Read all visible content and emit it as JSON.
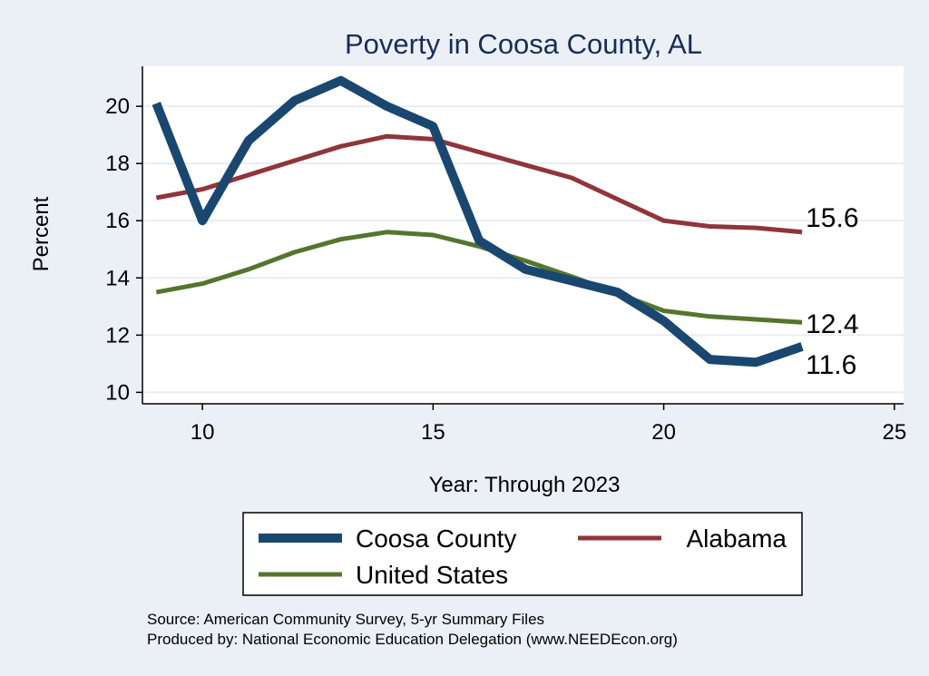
{
  "chart_data": {
    "type": "line",
    "title": "Poverty in Coosa County, AL",
    "xlabel": "Year: Through 2023",
    "ylabel": "Percent",
    "xlim": [
      8.7,
      25.2
    ],
    "ylim": [
      9.6,
      21.4
    ],
    "xticks": [
      10,
      15,
      20,
      25
    ],
    "yticks": [
      10,
      12,
      14,
      16,
      18,
      20
    ],
    "grid": true,
    "x": [
      9,
      10,
      11,
      12,
      13,
      14,
      15,
      16,
      17,
      18,
      19,
      20,
      21,
      22,
      23
    ],
    "series": [
      {
        "name": "Coosa County",
        "color": "#1a476f",
        "values": [
          20.1,
          16.0,
          18.8,
          20.2,
          20.9,
          20.0,
          19.3,
          15.3,
          14.3,
          13.9,
          13.5,
          12.5,
          11.15,
          11.05,
          11.6
        ],
        "end_label": "11.6"
      },
      {
        "name": "Alabama",
        "color": "#90353b",
        "values": [
          16.8,
          17.1,
          17.6,
          18.1,
          18.6,
          18.95,
          18.85,
          18.4,
          17.95,
          17.5,
          16.75,
          16.0,
          15.8,
          15.75,
          15.6
        ],
        "end_label": "15.6"
      },
      {
        "name": "United States",
        "color": "#55752f",
        "values": [
          13.5,
          13.8,
          14.3,
          14.9,
          15.35,
          15.6,
          15.5,
          15.1,
          14.6,
          14.05,
          13.45,
          12.85,
          12.65,
          12.55,
          12.45
        ],
        "end_label": "12.4"
      }
    ],
    "legend": {
      "position": "bottom",
      "entries": [
        "Coosa County",
        "Alabama",
        "United States"
      ]
    }
  },
  "notes": {
    "source": "Source: American Community Survey, 5-yr Summary Files",
    "produced": "Produced by: National Economic Education Delegation (www.NEEDEcon.org)"
  }
}
